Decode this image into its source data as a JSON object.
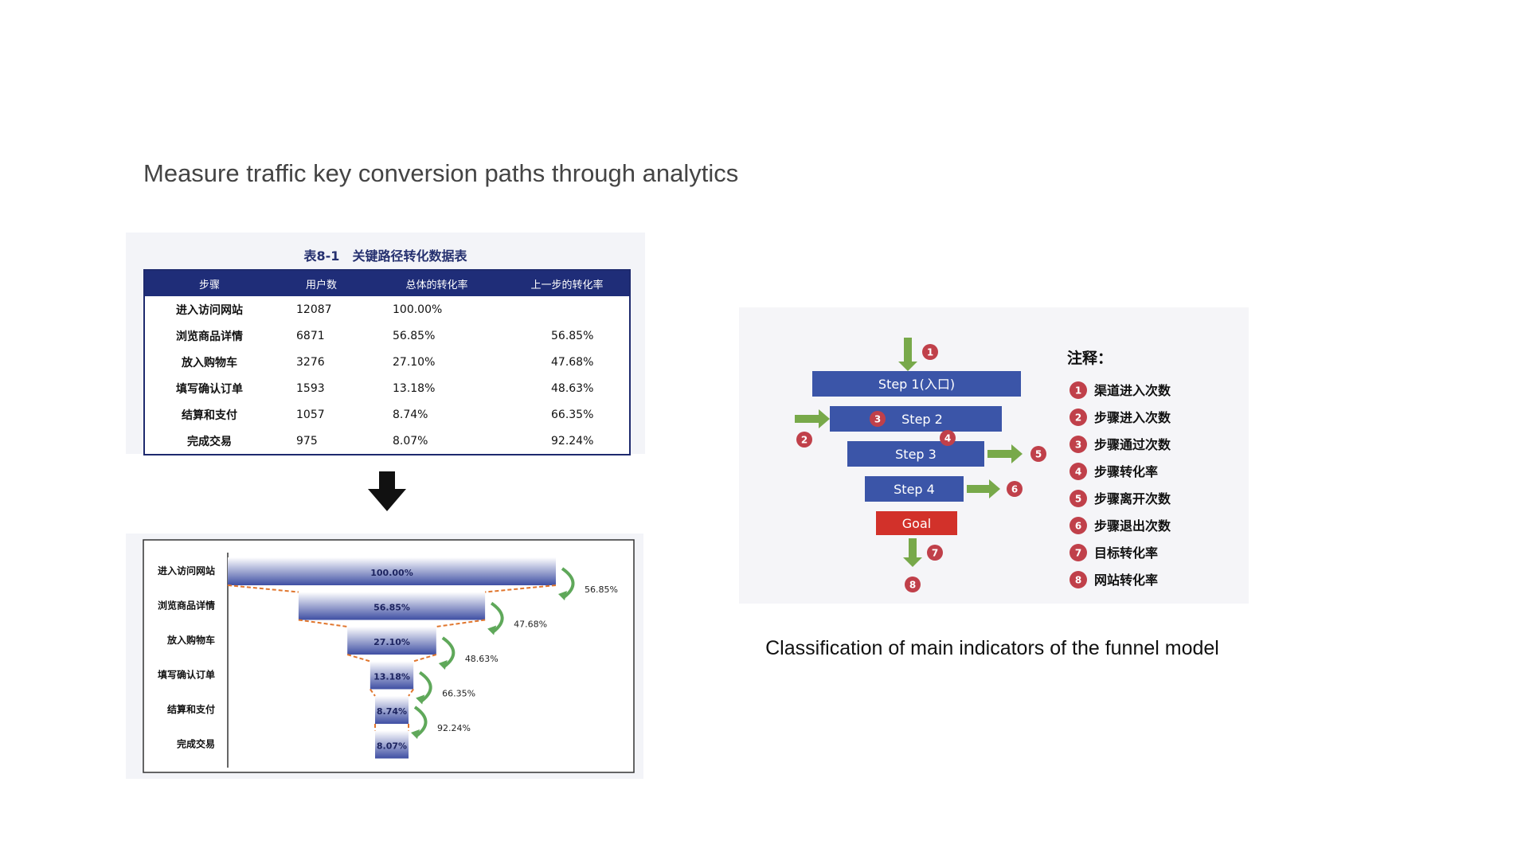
{
  "slide": {
    "title": "Measure traffic key conversion paths through analytics",
    "model_caption": "Classification of main indicators of the funnel model"
  },
  "table": {
    "caption": "表8-1　关键路径转化数据表",
    "headers": [
      "步骤",
      "用户数",
      "总体的转化率",
      "上一步的转化率"
    ],
    "rows": [
      [
        "进入访问网站",
        "12087",
        "100.00%",
        ""
      ],
      [
        "浏览商品详情",
        "6871",
        "56.85%",
        "56.85%"
      ],
      [
        "放入购物车",
        "3276",
        "27.10%",
        "47.68%"
      ],
      [
        "填写确认订单",
        "1593",
        "13.18%",
        "48.63%"
      ],
      [
        "结算和支付",
        "1057",
        "8.74%",
        "66.35%"
      ],
      [
        "完成交易",
        "975",
        "8.07%",
        "92.24%"
      ]
    ]
  },
  "chart_data": {
    "type": "bar",
    "orientation": "horizontal-funnel",
    "categories": [
      "进入访问网站",
      "浏览商品详情",
      "放入购物车",
      "填写确认订单",
      "结算和支付",
      "完成交易"
    ],
    "values": [
      100.0,
      56.85,
      27.1,
      13.18,
      8.74,
      8.07
    ],
    "value_labels": [
      "100.00%",
      "56.85%",
      "27.10%",
      "13.18%",
      "8.74%",
      "8.07%"
    ],
    "step_rates": [
      "56.85%",
      "47.68%",
      "48.63%",
      "66.35%",
      "92.24%"
    ],
    "bar_color": "#3f4fa3"
  },
  "model": {
    "steps": [
      "Step 1(入口)",
      "Step 2",
      "Step 3",
      "Step 4"
    ],
    "goal": "Goal",
    "legend_title": "注释：",
    "legend": [
      {
        "num": "1",
        "label": "渠道进入次数"
      },
      {
        "num": "2",
        "label": "步骤进入次数"
      },
      {
        "num": "3",
        "label": "步骤通过次数"
      },
      {
        "num": "4",
        "label": "步骤转化率"
      },
      {
        "num": "5",
        "label": "步骤离开次数"
      },
      {
        "num": "6",
        "label": "步骤退出次数"
      },
      {
        "num": "7",
        "label": "目标转化率"
      },
      {
        "num": "8",
        "label": "网站转化率"
      }
    ],
    "colors": {
      "step": "#3b55a8",
      "goal": "#d2312a",
      "arrow": "#78a94a",
      "badge": "#c0404a"
    }
  }
}
